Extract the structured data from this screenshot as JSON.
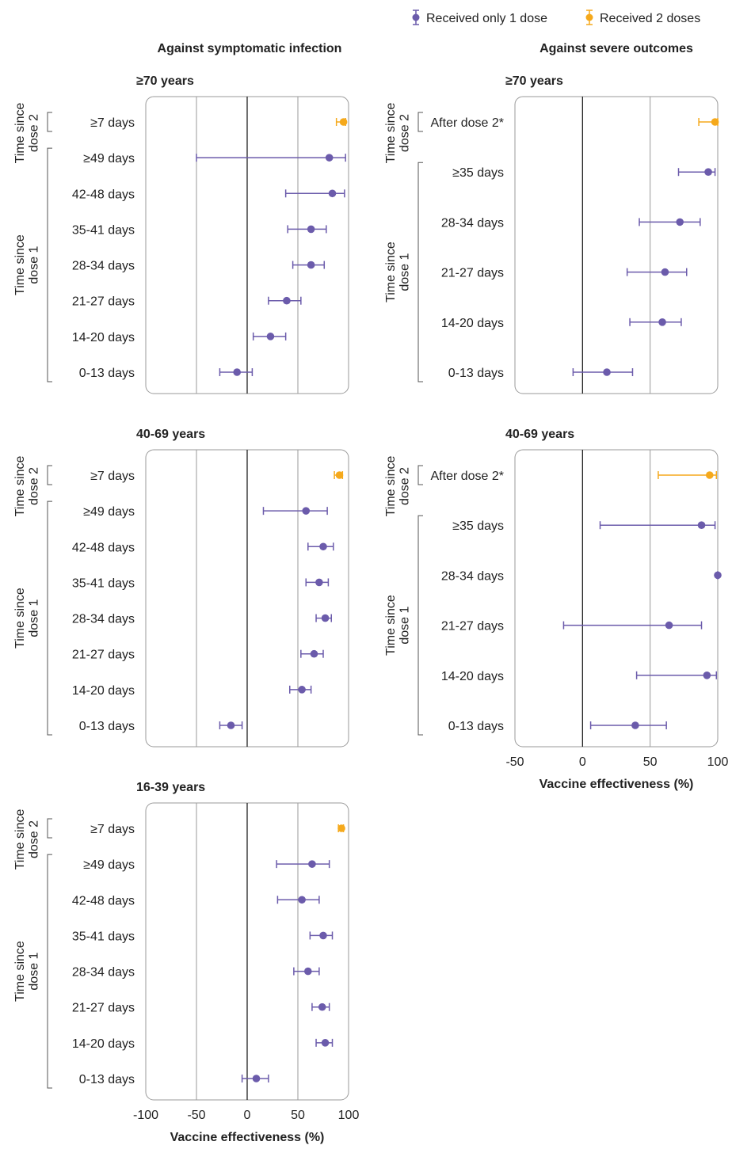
{
  "legend": {
    "items": [
      {
        "label": "Received only 1 dose",
        "color": "#6b5bab"
      },
      {
        "label": "Received 2 doses",
        "color": "#f5a91c"
      }
    ]
  },
  "columns": {
    "left_title": "Against symptomatic infection",
    "right_title": "Against severe outcomes"
  },
  "x_axis_label": "Vaccine effectiveness (%)",
  "group_labels": {
    "dose1": "Time since dose 1",
    "dose2": "Time since dose 2"
  },
  "chart_data": [
    {
      "type": "forest",
      "title": "≥70 years",
      "panel": "symptomatic",
      "xlim": [
        -100,
        100
      ],
      "xticks": [],
      "xlabel": "",
      "rows": [
        {
          "label": "≥7 days",
          "group": "dose2",
          "est": 95,
          "lo": 88,
          "hi": 97
        },
        {
          "label": "≥49 days",
          "group": "dose1",
          "est": 81,
          "lo": -50,
          "hi": 97
        },
        {
          "label": "42-48 days",
          "group": "dose1",
          "est": 84,
          "lo": 38,
          "hi": 96
        },
        {
          "label": "35-41 days",
          "group": "dose1",
          "est": 63,
          "lo": 40,
          "hi": 78
        },
        {
          "label": "28-34 days",
          "group": "dose1",
          "est": 63,
          "lo": 45,
          "hi": 76
        },
        {
          "label": "21-27 days",
          "group": "dose1",
          "est": 39,
          "lo": 21,
          "hi": 53
        },
        {
          "label": "14-20 days",
          "group": "dose1",
          "est": 23,
          "lo": 6,
          "hi": 38
        },
        {
          "label": "0-13 days",
          "group": "dose1",
          "est": -10,
          "lo": -27,
          "hi": 5
        }
      ]
    },
    {
      "type": "forest",
      "title": "40-69 years",
      "panel": "symptomatic",
      "xlim": [
        -100,
        100
      ],
      "xticks": [],
      "xlabel": "",
      "rows": [
        {
          "label": "≥7 days",
          "group": "dose2",
          "est": 91,
          "lo": 86,
          "hi": 94
        },
        {
          "label": "≥49 days",
          "group": "dose1",
          "est": 58,
          "lo": 16,
          "hi": 79
        },
        {
          "label": "42-48 days",
          "group": "dose1",
          "est": 75,
          "lo": 60,
          "hi": 85
        },
        {
          "label": "35-41 days",
          "group": "dose1",
          "est": 71,
          "lo": 58,
          "hi": 80
        },
        {
          "label": "28-34 days",
          "group": "dose1",
          "est": 77,
          "lo": 68,
          "hi": 83
        },
        {
          "label": "21-27 days",
          "group": "dose1",
          "est": 66,
          "lo": 53,
          "hi": 75
        },
        {
          "label": "14-20 days",
          "group": "dose1",
          "est": 54,
          "lo": 42,
          "hi": 63
        },
        {
          "label": "0-13 days",
          "group": "dose1",
          "est": -16,
          "lo": -27,
          "hi": -5
        }
      ]
    },
    {
      "type": "forest",
      "title": "16-39 years",
      "panel": "symptomatic",
      "xlim": [
        -100,
        100
      ],
      "xticks": [
        -100,
        -50,
        0,
        50,
        100
      ],
      "xlabel": "Vaccine effectiveness (%)",
      "rows": [
        {
          "label": "≥7 days",
          "group": "dose2",
          "est": 93,
          "lo": 90,
          "hi": 95
        },
        {
          "label": "≥49 days",
          "group": "dose1",
          "est": 64,
          "lo": 29,
          "hi": 81
        },
        {
          "label": "42-48 days",
          "group": "dose1",
          "est": 54,
          "lo": 30,
          "hi": 71
        },
        {
          "label": "35-41 days",
          "group": "dose1",
          "est": 75,
          "lo": 62,
          "hi": 84
        },
        {
          "label": "28-34 days",
          "group": "dose1",
          "est": 60,
          "lo": 46,
          "hi": 71
        },
        {
          "label": "21-27 days",
          "group": "dose1",
          "est": 74,
          "lo": 64,
          "hi": 81
        },
        {
          "label": "14-20 days",
          "group": "dose1",
          "est": 77,
          "lo": 68,
          "hi": 84
        },
        {
          "label": "0-13 days",
          "group": "dose1",
          "est": 9,
          "lo": -5,
          "hi": 21
        }
      ]
    },
    {
      "type": "forest",
      "title": "≥70 years",
      "panel": "severe",
      "xlim": [
        -50,
        100
      ],
      "xticks": [],
      "xlabel": "",
      "rows": [
        {
          "label": "After dose 2*",
          "group": "dose2",
          "est": 98,
          "lo": 86,
          "hi": 100
        },
        {
          "label": "≥35 days",
          "group": "dose1",
          "est": 93,
          "lo": 71,
          "hi": 98
        },
        {
          "label": "28-34 days",
          "group": "dose1",
          "est": 72,
          "lo": 42,
          "hi": 87
        },
        {
          "label": "21-27 days",
          "group": "dose1",
          "est": 61,
          "lo": 33,
          "hi": 77
        },
        {
          "label": "14-20 days",
          "group": "dose1",
          "est": 59,
          "lo": 35,
          "hi": 73
        },
        {
          "label": "0-13 days",
          "group": "dose1",
          "est": 18,
          "lo": -7,
          "hi": 37
        }
      ]
    },
    {
      "type": "forest",
      "title": "40-69 years",
      "panel": "severe",
      "xlim": [
        -50,
        100
      ],
      "xticks": [
        -50,
        0,
        50,
        100
      ],
      "xlabel": "Vaccine effectiveness (%)",
      "rows": [
        {
          "label": "After dose 2*",
          "group": "dose2",
          "est": 94,
          "lo": 56,
          "hi": 99
        },
        {
          "label": "≥35 days",
          "group": "dose1",
          "est": 88,
          "lo": 13,
          "hi": 98
        },
        {
          "label": "28-34 days",
          "group": "dose1",
          "est": 100,
          "lo": 100,
          "hi": 100
        },
        {
          "label": "21-27 days",
          "group": "dose1",
          "est": 64,
          "lo": -14,
          "hi": 88
        },
        {
          "label": "14-20 days",
          "group": "dose1",
          "est": 92,
          "lo": 40,
          "hi": 99
        },
        {
          "label": "0-13 days",
          "group": "dose1",
          "est": 39,
          "lo": 6,
          "hi": 62
        }
      ]
    }
  ]
}
